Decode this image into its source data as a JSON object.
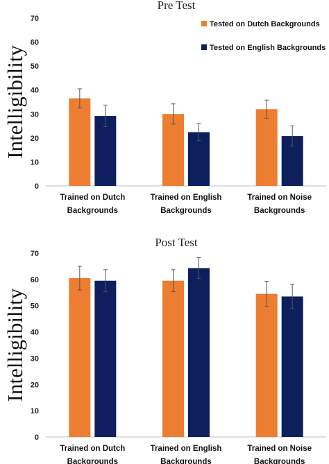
{
  "colors": {
    "dutch": "#ED7D31",
    "english": "#0D1F5C",
    "axis": "#BFBFBF",
    "error_bar": "#555555"
  },
  "chart_data": [
    {
      "type": "bar",
      "title": "Pre Test",
      "ylabel": "Intelligibility",
      "xlabel": "",
      "ylim": [
        0,
        70
      ],
      "yticks": [
        0,
        10,
        20,
        30,
        40,
        50,
        60,
        70
      ],
      "categories": [
        [
          "Trained on Dutch",
          "Backgrounds"
        ],
        [
          "Trained on English",
          "Backgrounds"
        ],
        [
          "Trained on Noise",
          "Backgrounds"
        ]
      ],
      "legend_position": "top-right",
      "series": [
        {
          "name": "Tested on Dutch Backgrounds",
          "values": [
            36.5,
            30,
            32
          ],
          "errors": [
            4,
            4.2,
            3.8
          ]
        },
        {
          "name": "Tested on English Backgrounds",
          "values": [
            29.2,
            22.4,
            20.8
          ],
          "errors": [
            4.5,
            3.5,
            4.2
          ]
        }
      ]
    },
    {
      "type": "bar",
      "title": "Post Test",
      "ylabel": "Intelligibility",
      "xlabel": "",
      "ylim": [
        0,
        70
      ],
      "yticks": [
        0,
        10,
        20,
        30,
        40,
        50,
        60,
        70
      ],
      "categories": [
        [
          "Trained on Dutch",
          "Backgrounds"
        ],
        [
          "Trained on English",
          "Backgrounds"
        ],
        [
          "Trained on Noise",
          "Backgrounds"
        ]
      ],
      "series": [
        {
          "values": [
            60.5,
            59.5,
            54.5
          ],
          "errors": [
            4.5,
            4.2,
            4.8
          ]
        },
        {
          "values": [
            59.5,
            64.3,
            53.5
          ],
          "errors": [
            4.2,
            4,
            4.6
          ]
        }
      ]
    }
  ]
}
